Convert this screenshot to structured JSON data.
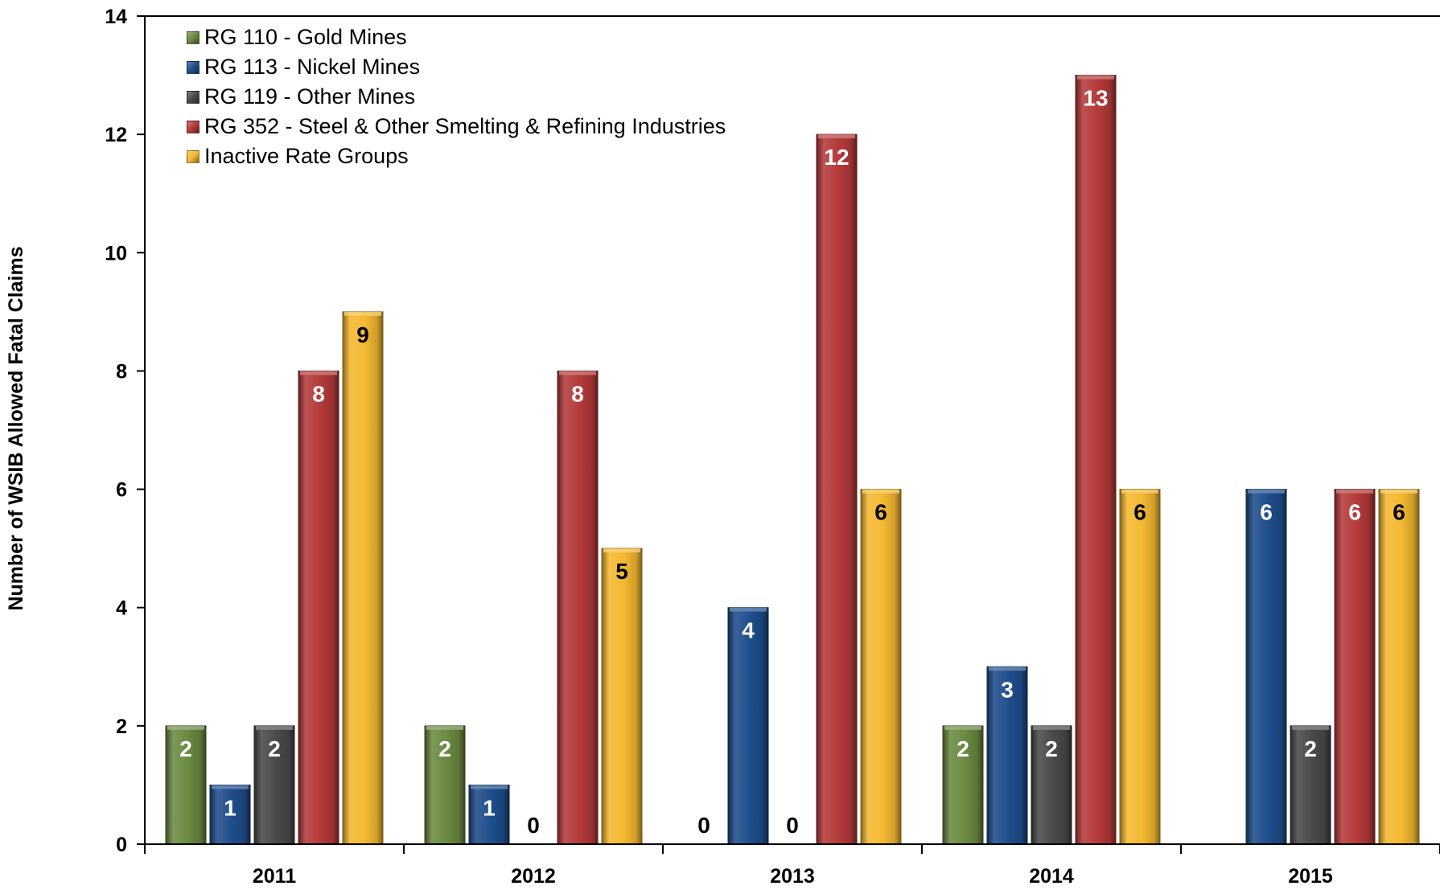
{
  "chart_data": {
    "type": "bar",
    "title": "",
    "xlabel": "",
    "ylabel": "Number of WSIB Allowed  Fatal Claims",
    "ylim": [
      0,
      14
    ],
    "yticks": [
      0,
      2,
      4,
      6,
      8,
      10,
      12,
      14
    ],
    "categories": [
      "2011",
      "2012",
      "2013",
      "2014",
      "2015"
    ],
    "legend_position": "top-left",
    "grid": false,
    "series": [
      {
        "name": "RG 110 - Gold Mines",
        "color": "#6b8a42",
        "values": [
          2,
          2,
          0,
          2,
          0
        ],
        "show_labels": [
          true,
          true,
          true,
          true,
          false
        ]
      },
      {
        "name": "RG 113 - Nickel Mines",
        "color": "#1f4e8c",
        "values": [
          1,
          1,
          4,
          3,
          6
        ],
        "show_labels": [
          true,
          true,
          true,
          true,
          true
        ]
      },
      {
        "name": "RG 119 - Other Mines",
        "color": "#4a4a4a",
        "values": [
          2,
          0,
          0,
          2,
          2
        ],
        "show_labels": [
          true,
          true,
          true,
          true,
          true
        ]
      },
      {
        "name": "RG 352 - Steel & Other Smelting & Refining Industries",
        "color": "#b53a3a",
        "values": [
          8,
          8,
          12,
          13,
          6
        ],
        "show_labels": [
          true,
          true,
          true,
          true,
          true
        ]
      },
      {
        "name": "Inactive Rate Groups",
        "color": "#f5b931",
        "values": [
          9,
          5,
          6,
          6,
          6
        ],
        "show_labels": [
          true,
          true,
          true,
          true,
          true
        ]
      }
    ]
  }
}
